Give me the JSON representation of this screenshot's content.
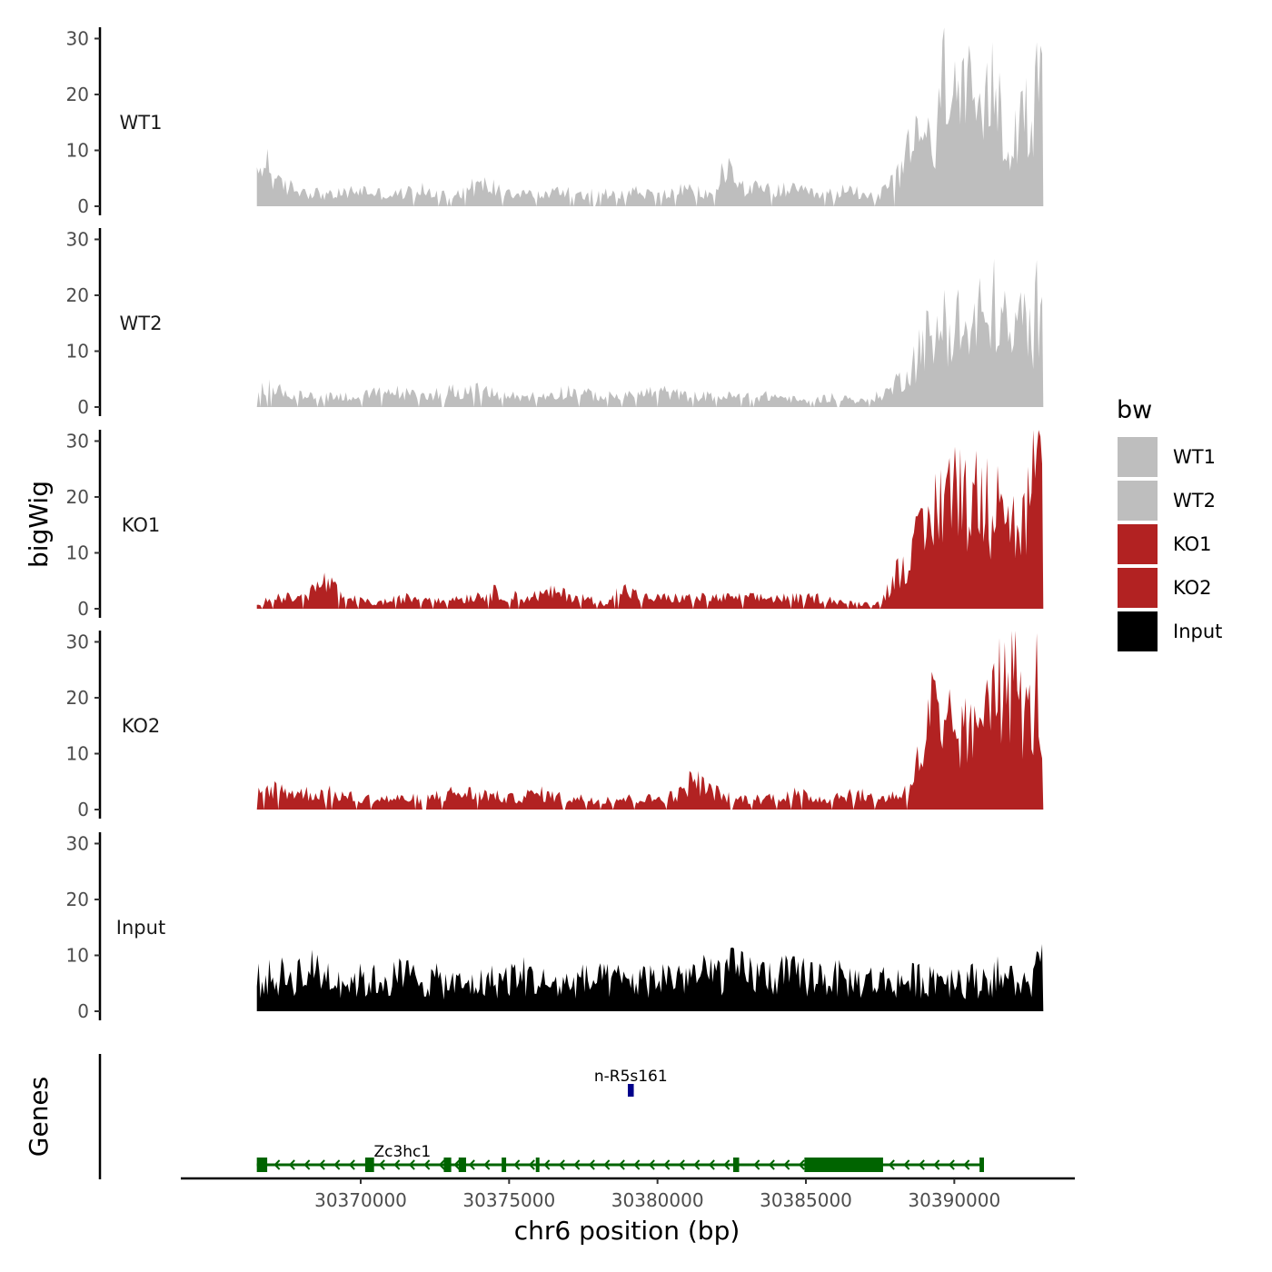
{
  "chart_data": {
    "type": "area",
    "title": "",
    "xlabel": "chr6 position (bp)",
    "ylabel": "bigWig",
    "genes_label": "Genes",
    "xlim": [
      30364000,
      30394000
    ],
    "ylim": [
      0,
      33
    ],
    "x_ticks": [
      30370000,
      30375000,
      30380000,
      30385000,
      30390000
    ],
    "x_tick_labels": [
      "30370000",
      "30375000",
      "30380000",
      "30385000",
      "30390000"
    ],
    "y_ticks": [
      0,
      10,
      20,
      30
    ],
    "y_tick_labels": [
      "0",
      "10",
      "20",
      "30"
    ],
    "grid": false,
    "legend": {
      "title": "bw",
      "placement": "right",
      "entries": [
        {
          "label": "WT1",
          "color": "#bebebe"
        },
        {
          "label": "WT2",
          "color": "#bebebe"
        },
        {
          "label": "KO1",
          "color": "#b22222"
        },
        {
          "label": "KO2",
          "color": "#b22222"
        },
        {
          "label": "Input",
          "color": "#000000"
        }
      ]
    },
    "signal_range": [
      30366500,
      30393000
    ],
    "series": [
      {
        "name": "WT1",
        "color": "#bebebe",
        "profile": [
          [
            30366500,
            5
          ],
          [
            30366800,
            9
          ],
          [
            30367200,
            4
          ],
          [
            30368000,
            3
          ],
          [
            30369000,
            2
          ],
          [
            30370000,
            3
          ],
          [
            30371000,
            2
          ],
          [
            30372000,
            3
          ],
          [
            30373000,
            2
          ],
          [
            30374000,
            4
          ],
          [
            30375000,
            3
          ],
          [
            30376000,
            2
          ],
          [
            30377000,
            3
          ],
          [
            30378000,
            2
          ],
          [
            30379000,
            3
          ],
          [
            30380000,
            2
          ],
          [
            30381000,
            3
          ],
          [
            30381900,
            2
          ],
          [
            30382300,
            8
          ],
          [
            30382700,
            4
          ],
          [
            30383500,
            3
          ],
          [
            30384500,
            3
          ],
          [
            30385500,
            2
          ],
          [
            30386500,
            3
          ],
          [
            30387500,
            2
          ],
          [
            30388000,
            5
          ],
          [
            30388500,
            10
          ],
          [
            30388900,
            16
          ],
          [
            30389300,
            8
          ],
          [
            30389600,
            22
          ],
          [
            30389900,
            30
          ],
          [
            30390200,
            18
          ],
          [
            30390500,
            20
          ],
          [
            30390800,
            13
          ],
          [
            30391100,
            18
          ],
          [
            30391400,
            25
          ],
          [
            30391700,
            15
          ],
          [
            30392000,
            12
          ],
          [
            30392300,
            22
          ],
          [
            30392600,
            14
          ],
          [
            30392800,
            21
          ],
          [
            30393000,
            21
          ]
        ]
      },
      {
        "name": "WT2",
        "color": "#bebebe",
        "profile": [
          [
            30366500,
            2
          ],
          [
            30366800,
            4
          ],
          [
            30367200,
            3
          ],
          [
            30368000,
            2
          ],
          [
            30369000,
            2
          ],
          [
            30370000,
            2
          ],
          [
            30371000,
            3
          ],
          [
            30372000,
            2
          ],
          [
            30373000,
            3
          ],
          [
            30374000,
            3
          ],
          [
            30375000,
            2
          ],
          [
            30376000,
            2
          ],
          [
            30377000,
            3
          ],
          [
            30378000,
            2
          ],
          [
            30379000,
            2
          ],
          [
            30380000,
            3
          ],
          [
            30381000,
            2
          ],
          [
            30382000,
            2
          ],
          [
            30383000,
            2
          ],
          [
            30384000,
            2
          ],
          [
            30385000,
            1
          ],
          [
            30386000,
            2
          ],
          [
            30387000,
            1
          ],
          [
            30387800,
            3
          ],
          [
            30388300,
            6
          ],
          [
            30388700,
            9
          ],
          [
            30389000,
            14
          ],
          [
            30389300,
            10
          ],
          [
            30389600,
            18
          ],
          [
            30389900,
            14
          ],
          [
            30390200,
            16
          ],
          [
            30390500,
            12
          ],
          [
            30390800,
            18
          ],
          [
            30391100,
            14
          ],
          [
            30391400,
            20
          ],
          [
            30391700,
            15
          ],
          [
            30392000,
            12
          ],
          [
            30392300,
            17
          ],
          [
            30392600,
            13
          ],
          [
            30392800,
            19
          ],
          [
            30393000,
            13
          ]
        ]
      },
      {
        "name": "KO1",
        "color": "#b22222",
        "profile": [
          [
            30366500,
            1
          ],
          [
            30367000,
            2
          ],
          [
            30368000,
            2
          ],
          [
            30368800,
            5
          ],
          [
            30369500,
            2
          ],
          [
            30370500,
            1
          ],
          [
            30371500,
            2
          ],
          [
            30372500,
            2
          ],
          [
            30373500,
            2
          ],
          [
            30374500,
            3
          ],
          [
            30375500,
            2
          ],
          [
            30376500,
            3
          ],
          [
            30377500,
            2
          ],
          [
            30378200,
            1
          ],
          [
            30378700,
            4
          ],
          [
            30379500,
            2
          ],
          [
            30380500,
            2
          ],
          [
            30381500,
            2
          ],
          [
            30382500,
            2
          ],
          [
            30383500,
            2
          ],
          [
            30384500,
            2
          ],
          [
            30385500,
            2
          ],
          [
            30386500,
            1
          ],
          [
            30387500,
            1
          ],
          [
            30388000,
            6
          ],
          [
            30388500,
            11
          ],
          [
            30389000,
            13
          ],
          [
            30389400,
            19
          ],
          [
            30389700,
            24
          ],
          [
            30390000,
            21
          ],
          [
            30390300,
            25
          ],
          [
            30390600,
            19
          ],
          [
            30390900,
            22
          ],
          [
            30391200,
            18
          ],
          [
            30391500,
            31
          ],
          [
            30391800,
            17
          ],
          [
            30392100,
            15
          ],
          [
            30392400,
            16
          ],
          [
            30392700,
            28
          ],
          [
            30393000,
            20
          ]
        ]
      },
      {
        "name": "KO2",
        "color": "#b22222",
        "profile": [
          [
            30366500,
            3
          ],
          [
            30367000,
            4
          ],
          [
            30368000,
            3
          ],
          [
            30369000,
            3
          ],
          [
            30370000,
            2
          ],
          [
            30371000,
            2
          ],
          [
            30372000,
            2
          ],
          [
            30373000,
            3
          ],
          [
            30374000,
            3
          ],
          [
            30375000,
            2
          ],
          [
            30376000,
            3
          ],
          [
            30377000,
            2
          ],
          [
            30378000,
            2
          ],
          [
            30379000,
            2
          ],
          [
            30380000,
            2
          ],
          [
            30380800,
            3
          ],
          [
            30381200,
            6
          ],
          [
            30381600,
            4
          ],
          [
            30382500,
            2
          ],
          [
            30383500,
            2
          ],
          [
            30384500,
            3
          ],
          [
            30385500,
            2
          ],
          [
            30386500,
            3
          ],
          [
            30387500,
            2
          ],
          [
            30388300,
            3
          ],
          [
            30388900,
            10
          ],
          [
            30389300,
            20
          ],
          [
            30389600,
            11
          ],
          [
            30389900,
            16
          ],
          [
            30390200,
            13
          ],
          [
            30390500,
            15
          ],
          [
            30390800,
            12
          ],
          [
            30391100,
            26
          ],
          [
            30391400,
            30
          ],
          [
            30391700,
            22
          ],
          [
            30392000,
            25
          ],
          [
            30392300,
            19
          ],
          [
            30392600,
            16
          ],
          [
            30392800,
            24
          ],
          [
            30393000,
            13
          ]
        ]
      },
      {
        "name": "Input",
        "color": "#000000",
        "profile": [
          [
            30366500,
            6
          ],
          [
            30367500,
            7
          ],
          [
            30368500,
            8
          ],
          [
            30369500,
            6
          ],
          [
            30370500,
            6
          ],
          [
            30371500,
            7
          ],
          [
            30372500,
            6
          ],
          [
            30373500,
            5
          ],
          [
            30374500,
            6
          ],
          [
            30375500,
            7
          ],
          [
            30376500,
            5
          ],
          [
            30377500,
            6
          ],
          [
            30378500,
            6
          ],
          [
            30379500,
            6
          ],
          [
            30380500,
            7
          ],
          [
            30381500,
            7
          ],
          [
            30382500,
            8
          ],
          [
            30383500,
            7
          ],
          [
            30384500,
            7
          ],
          [
            30385500,
            7
          ],
          [
            30386500,
            6
          ],
          [
            30387500,
            6
          ],
          [
            30388500,
            6
          ],
          [
            30389500,
            7
          ],
          [
            30390500,
            6
          ],
          [
            30391500,
            7
          ],
          [
            30392500,
            5
          ],
          [
            30393000,
            10
          ]
        ]
      }
    ],
    "genes": [
      {
        "name": "n-R5s161",
        "color": "#00008b",
        "start": 30379000,
        "end": 30379200,
        "strand": "+",
        "exons": [
          [
            30379000,
            30379200
          ]
        ]
      },
      {
        "name": "Zc3hc1",
        "color": "#006400",
        "start": 30366500,
        "end": 30391000,
        "strand": "-",
        "exons": [
          [
            30366500,
            30366850
          ],
          [
            30370150,
            30370450
          ],
          [
            30372800,
            30373050
          ],
          [
            30373300,
            30373550
          ],
          [
            30374750,
            30374900
          ],
          [
            30375900,
            30376000
          ],
          [
            30382550,
            30382750
          ],
          [
            30384950,
            30387600
          ],
          [
            30390850,
            30391000
          ]
        ]
      }
    ]
  }
}
